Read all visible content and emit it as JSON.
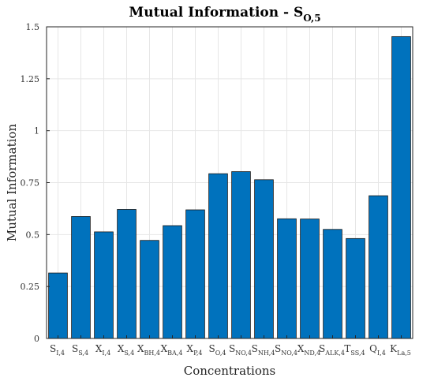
{
  "chart_data": {
    "type": "bar",
    "title": "Mutual Information - S",
    "title_subscript": "O,5",
    "xlabel": "Concentrations",
    "ylabel": "Mutual Information",
    "ylim": [
      0,
      1.5
    ],
    "yticks": [
      {
        "value": 0,
        "label": "0"
      },
      {
        "value": 0.25,
        "label": "0.25"
      },
      {
        "value": 0.5,
        "label": "0.5"
      },
      {
        "value": 0.75,
        "label": "0.75"
      },
      {
        "value": 1,
        "label": "1"
      },
      {
        "value": 1.25,
        "label": "1.25"
      },
      {
        "value": 1.5,
        "label": "1.5"
      }
    ],
    "grid": true,
    "bar_color": "#0072bd",
    "categories": [
      {
        "main": "S",
        "sub": "I,4"
      },
      {
        "main": "S",
        "sub": "S,4"
      },
      {
        "main": "X",
        "sub": "I,4"
      },
      {
        "main": "X",
        "sub": "S,4"
      },
      {
        "main": "X",
        "sub": "BH,4"
      },
      {
        "main": "X",
        "sub": "BA,4"
      },
      {
        "main": "X",
        "sub": "P,4"
      },
      {
        "main": "S",
        "sub": "O,4"
      },
      {
        "main": "S",
        "sub": "NO,4"
      },
      {
        "main": "S",
        "sub": "NH,4"
      },
      {
        "main": "S",
        "sub": "NO,4"
      },
      {
        "main": "X",
        "sub": "ND,4"
      },
      {
        "main": "S",
        "sub": "ALK,4"
      },
      {
        "main": "T",
        "sub": "SS,4"
      },
      {
        "main": "Q",
        "sub": "I,4"
      },
      {
        "main": "K",
        "sub": "La,5"
      }
    ],
    "values": [
      0.315,
      0.587,
      0.513,
      0.621,
      0.472,
      0.543,
      0.619,
      0.793,
      0.803,
      0.764,
      0.576,
      0.575,
      0.525,
      0.481,
      0.687,
      1.453
    ]
  }
}
